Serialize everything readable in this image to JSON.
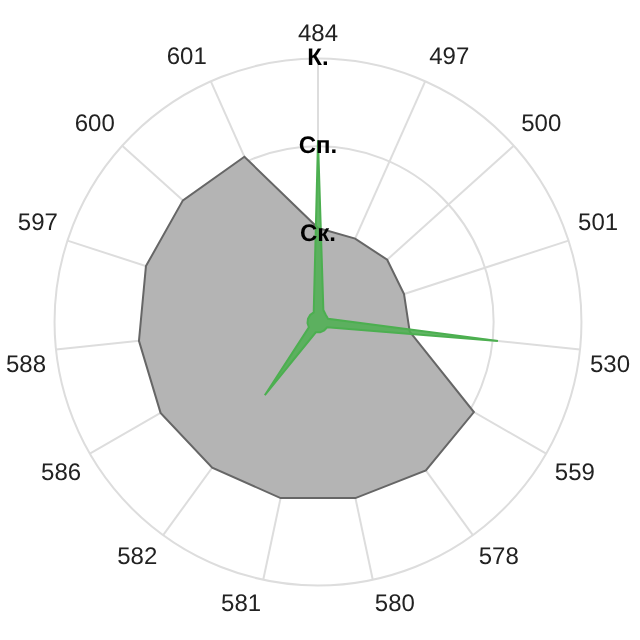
{
  "chart_data": {
    "type": "radar",
    "categories": [
      "484",
      "497",
      "500",
      "501",
      "530",
      "559",
      "578",
      "580",
      "581",
      "582",
      "586",
      "588",
      "597",
      "600",
      "601"
    ],
    "ylim": [
      0,
      3
    ],
    "yticks": [
      {
        "value": 1,
        "label": "Ск."
      },
      {
        "value": 2,
        "label": "Сп."
      },
      {
        "value": 3,
        "label": "К."
      }
    ],
    "grid": true,
    "legend": false,
    "marker": "none",
    "series": [
      {
        "color": "#b4b4b4",
        "values": [
          1.07,
          1.04,
          1.06,
          1.03,
          1.05,
          2.05,
          2.09,
          2.05,
          2.05,
          2.05,
          2.07,
          2.05,
          2.06,
          2.07,
          2.06
        ]
      },
      {
        "color": "#4caf50",
        "values": [
          2.07,
          0.15,
          0.12,
          0.12,
          2.06,
          0.12,
          0.12,
          0.12,
          0.12,
          1.03,
          0.12,
          0.12,
          0.12,
          0.12,
          0.12
        ]
      }
    ]
  }
}
